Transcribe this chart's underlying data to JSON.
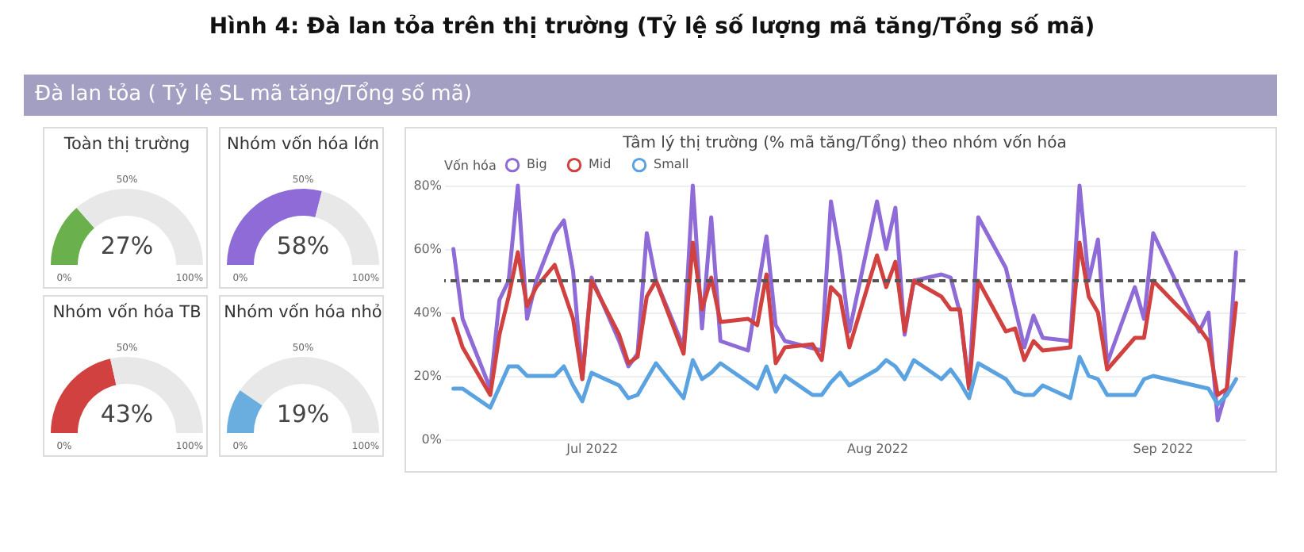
{
  "chart_data": [
    {
      "type": "other",
      "title": "Hình 4: Đà lan tỏa trên thị trường (Tỷ lệ số lượng mã tăng/Tổng số mã)",
      "subtitle": "Đà lan tỏa ( Tỷ lệ SL mã tăng/Tổng số mã)"
    },
    {
      "type": "donut",
      "title": "Toàn thị trường",
      "categories": [
        null,
        null
      ],
      "values": [
        27,
        73
      ],
      "colors": [
        "#6ab04c",
        "#e8e8e8"
      ],
      "annotations": [
        "27%",
        "0%",
        "100%",
        "50%"
      ]
    },
    {
      "type": "donut",
      "title": "Nhóm vốn hóa lớn",
      "categories": [
        null,
        null
      ],
      "values": [
        58,
        42
      ],
      "colors": [
        "#8e6bd6",
        "#e8e8e8"
      ],
      "annotations": [
        "58%",
        "0%",
        "100%",
        "50%"
      ]
    },
    {
      "type": "donut",
      "title": "Nhóm vốn hóa TB",
      "categories": [
        null,
        null
      ],
      "values": [
        43,
        57
      ],
      "colors": [
        "#d0413f",
        "#e8e8e8"
      ],
      "annotations": [
        "43%",
        "0%",
        "100%",
        "50%"
      ]
    },
    {
      "type": "donut",
      "title": "Nhóm vốn hóa nhỏ",
      "categories": [
        null,
        null
      ],
      "values": [
        19,
        81
      ],
      "colors": [
        "#6aaee0",
        "#e8e8e8"
      ],
      "annotations": [
        "19%",
        "0%",
        "100%",
        "50%"
      ]
    },
    {
      "type": "line",
      "title": "Tâm lý thị trường (% mã tăng/Tổng) theo nhóm vốn hóa",
      "legend": "top left",
      "legend_title": "Vốn hóa",
      "grid": "y",
      "xlim": [
        "2022-06-15",
        "2022-09-10"
      ],
      "xticks": [
        {
          "value": "2022-07-01",
          "label": "Jul 2022"
        },
        {
          "value": "2022-08-01",
          "label": "Aug 2022"
        },
        {
          "value": "2022-09-01",
          "label": "Sep 2022"
        }
      ],
      "ylim": [
        0,
        80
      ],
      "yticks": [
        {
          "value": 0,
          "label": "0%"
        },
        {
          "value": 20,
          "label": "20%"
        },
        {
          "value": 40,
          "label": "40%"
        },
        {
          "value": 60,
          "label": "60%"
        },
        {
          "value": 80,
          "label": "80%"
        }
      ],
      "ref_lines": [
        {
          "axis": "y",
          "value": 50,
          "color": "#555555",
          "line_style": "dashed"
        }
      ],
      "series": [
        {
          "name": "Big",
          "color": "#8e6bd6",
          "x": [
            "2022-06-16",
            "2022-06-17",
            "2022-06-20",
            "2022-06-21",
            "2022-06-22",
            "2022-06-23",
            "2022-06-24",
            "2022-06-25",
            "2022-06-27",
            "2022-06-28",
            "2022-06-29",
            "2022-06-30",
            "2022-07-01",
            "2022-07-04",
            "2022-07-05",
            "2022-07-06",
            "2022-07-07",
            "2022-07-08",
            "2022-07-11",
            "2022-07-12",
            "2022-07-13",
            "2022-07-14",
            "2022-07-15",
            "2022-07-18",
            "2022-07-20",
            "2022-07-21",
            "2022-07-22",
            "2022-07-26",
            "2022-07-27",
            "2022-07-28",
            "2022-07-29",
            "2022-08-01",
            "2022-08-02",
            "2022-08-03",
            "2022-08-04",
            "2022-08-05",
            "2022-08-08",
            "2022-08-09",
            "2022-08-10",
            "2022-08-11",
            "2022-08-12",
            "2022-08-15",
            "2022-08-17",
            "2022-08-18",
            "2022-08-19",
            "2022-08-22",
            "2022-08-23",
            "2022-08-24",
            "2022-08-25",
            "2022-08-26",
            "2022-08-29",
            "2022-08-30",
            "2022-08-31",
            "2022-09-05",
            "2022-09-06",
            "2022-09-07",
            "2022-09-08",
            "2022-09-09"
          ],
          "values": [
            60,
            38,
            16,
            44,
            50,
            80,
            38,
            50,
            65,
            69,
            53,
            19,
            51,
            31,
            23,
            27,
            65,
            50,
            29,
            80,
            35,
            70,
            31,
            28,
            64,
            36,
            31,
            28,
            75,
            58,
            34,
            75,
            60,
            73,
            33,
            50,
            52,
            51,
            40,
            16,
            70,
            54,
            29,
            39,
            32,
            31,
            80,
            50,
            63,
            24,
            48,
            38,
            65,
            34,
            40,
            6,
            16,
            59
          ]
        },
        {
          "name": "Mid",
          "color": "#d0413f",
          "x": [
            "2022-06-16",
            "2022-06-17",
            "2022-06-20",
            "2022-06-21",
            "2022-06-22",
            "2022-06-23",
            "2022-06-24",
            "2022-06-25",
            "2022-06-27",
            "2022-06-29",
            "2022-06-30",
            "2022-07-01",
            "2022-07-04",
            "2022-07-05",
            "2022-07-06",
            "2022-07-07",
            "2022-07-08",
            "2022-07-11",
            "2022-07-12",
            "2022-07-13",
            "2022-07-14",
            "2022-07-15",
            "2022-07-18",
            "2022-07-19",
            "2022-07-20",
            "2022-07-21",
            "2022-07-22",
            "2022-07-25",
            "2022-07-26",
            "2022-07-27",
            "2022-07-28",
            "2022-07-29",
            "2022-08-01",
            "2022-08-02",
            "2022-08-03",
            "2022-08-04",
            "2022-08-05",
            "2022-08-08",
            "2022-08-09",
            "2022-08-10",
            "2022-08-11",
            "2022-08-12",
            "2022-08-15",
            "2022-08-16",
            "2022-08-17",
            "2022-08-18",
            "2022-08-19",
            "2022-08-22",
            "2022-08-23",
            "2022-08-24",
            "2022-08-25",
            "2022-08-26",
            "2022-08-29",
            "2022-08-30",
            "2022-08-31",
            "2022-09-05",
            "2022-09-06",
            "2022-09-07",
            "2022-09-08",
            "2022-09-09"
          ],
          "values": [
            38,
            29,
            14,
            33,
            45,
            59,
            42,
            48,
            55,
            38,
            19,
            50,
            33,
            24,
            26,
            45,
            50,
            27,
            62,
            41,
            51,
            37,
            38,
            36,
            52,
            24,
            29,
            30,
            25,
            48,
            45,
            29,
            58,
            48,
            56,
            34,
            50,
            45,
            41,
            41,
            16,
            50,
            34,
            35,
            25,
            31,
            28,
            29,
            62,
            45,
            40,
            22,
            32,
            32,
            50,
            35,
            31,
            14,
            16,
            43
          ]
        },
        {
          "name": "Small",
          "color": "#5ba3e0",
          "x": [
            "2022-06-16",
            "2022-06-17",
            "2022-06-20",
            "2022-06-22",
            "2022-06-23",
            "2022-06-24",
            "2022-06-27",
            "2022-06-28",
            "2022-06-29",
            "2022-06-30",
            "2022-07-01",
            "2022-07-04",
            "2022-07-05",
            "2022-07-06",
            "2022-07-08",
            "2022-07-11",
            "2022-07-12",
            "2022-07-13",
            "2022-07-14",
            "2022-07-15",
            "2022-07-18",
            "2022-07-19",
            "2022-07-20",
            "2022-07-21",
            "2022-07-22",
            "2022-07-25",
            "2022-07-26",
            "2022-07-27",
            "2022-07-28",
            "2022-07-29",
            "2022-08-01",
            "2022-08-02",
            "2022-08-03",
            "2022-08-04",
            "2022-08-05",
            "2022-08-08",
            "2022-08-09",
            "2022-08-10",
            "2022-08-11",
            "2022-08-12",
            "2022-08-15",
            "2022-08-16",
            "2022-08-17",
            "2022-08-18",
            "2022-08-19",
            "2022-08-22",
            "2022-08-23",
            "2022-08-24",
            "2022-08-25",
            "2022-08-26",
            "2022-08-29",
            "2022-08-30",
            "2022-08-31",
            "2022-09-06",
            "2022-09-07",
            "2022-09-08",
            "2022-09-09"
          ],
          "values": [
            16,
            16,
            10,
            23,
            23,
            20,
            20,
            23,
            17,
            12,
            21,
            17,
            13,
            14,
            24,
            13,
            25,
            19,
            21,
            24,
            18,
            16,
            23,
            15,
            20,
            14,
            14,
            18,
            21,
            17,
            22,
            25,
            23,
            19,
            25,
            19,
            22,
            18,
            13,
            24,
            19,
            15,
            14,
            14,
            17,
            13,
            26,
            20,
            19,
            14,
            14,
            19,
            20,
            16,
            11,
            14,
            19
          ]
        }
      ]
    }
  ]
}
